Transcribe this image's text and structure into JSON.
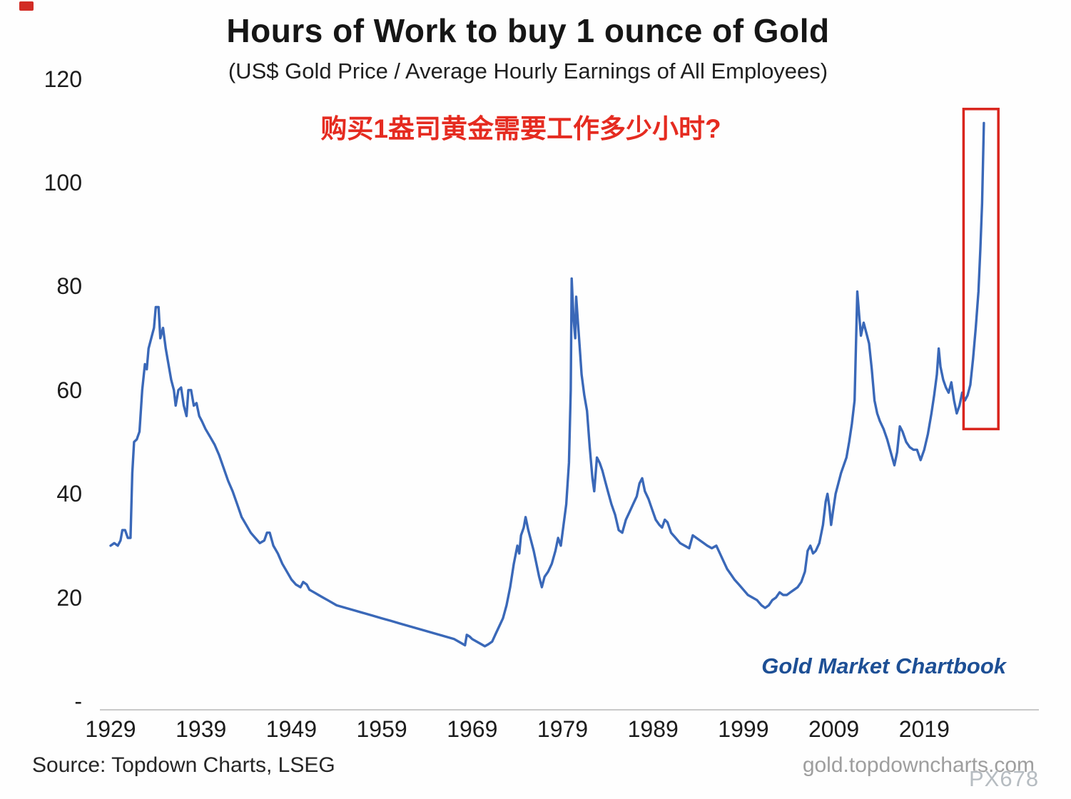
{
  "chart_data": {
    "type": "line",
    "title": "Hours of Work to buy 1 ounce of Gold",
    "subtitle": "(US$ Gold Price / Average Hourly Earnings of All Employees)",
    "annotation_cn": "购买1盎司黄金需要工作多少小时?",
    "brand_label": "Gold Market Chartbook",
    "xlabel": "",
    "ylabel": "",
    "x_range": [
      1929,
      2027.5
    ],
    "y_range": [
      0,
      124
    ],
    "grid": false,
    "legend": "none",
    "line_color": "#3a68b8",
    "highlight_color": "#d9251d",
    "y_ticks": [
      {
        "value": 120,
        "label": "120"
      },
      {
        "value": 100,
        "label": "100"
      },
      {
        "value": 80,
        "label": "80"
      },
      {
        "value": 60,
        "label": "60"
      },
      {
        "value": 40,
        "label": "40"
      },
      {
        "value": 20,
        "label": "20"
      },
      {
        "value": 0,
        "label": "-"
      }
    ],
    "x_ticks": [
      {
        "value": 1929,
        "label": "1929"
      },
      {
        "value": 1939,
        "label": "1939"
      },
      {
        "value": 1949,
        "label": "1949"
      },
      {
        "value": 1959,
        "label": "1959"
      },
      {
        "value": 1969,
        "label": "1969"
      },
      {
        "value": 1979,
        "label": "1979"
      },
      {
        "value": 1989,
        "label": "1989"
      },
      {
        "value": 1999,
        "label": "1999"
      },
      {
        "value": 2009,
        "label": "2009"
      },
      {
        "value": 2019,
        "label": "2019"
      }
    ],
    "highlight_box": {
      "x0": 2023.35,
      "x1": 2027.2,
      "y0": 52.5,
      "y1": 114.2
    },
    "series": [
      {
        "name": "Hours of work to buy 1 oz of gold",
        "points": [
          [
            1929.0,
            30
          ],
          [
            1929.4,
            30.5
          ],
          [
            1929.8,
            30
          ],
          [
            1930.1,
            31
          ],
          [
            1930.3,
            33
          ],
          [
            1930.6,
            33
          ],
          [
            1930.9,
            31.5
          ],
          [
            1931.2,
            31.5
          ],
          [
            1931.4,
            44
          ],
          [
            1931.6,
            50
          ],
          [
            1931.9,
            50.5
          ],
          [
            1932.2,
            52
          ],
          [
            1932.5,
            60
          ],
          [
            1932.8,
            65
          ],
          [
            1933.0,
            64
          ],
          [
            1933.2,
            68
          ],
          [
            1933.5,
            70
          ],
          [
            1933.8,
            72
          ],
          [
            1934.0,
            76
          ],
          [
            1934.3,
            76
          ],
          [
            1934.5,
            70
          ],
          [
            1934.8,
            72
          ],
          [
            1935.1,
            68
          ],
          [
            1935.4,
            65
          ],
          [
            1935.7,
            62
          ],
          [
            1936.0,
            60
          ],
          [
            1936.2,
            57
          ],
          [
            1936.5,
            60
          ],
          [
            1936.8,
            60.5
          ],
          [
            1937.1,
            57
          ],
          [
            1937.4,
            55
          ],
          [
            1937.6,
            60
          ],
          [
            1937.9,
            60
          ],
          [
            1938.2,
            57
          ],
          [
            1938.5,
            57.5
          ],
          [
            1938.8,
            55
          ],
          [
            1939.1,
            54
          ],
          [
            1939.5,
            52.5
          ],
          [
            1940.0,
            51
          ],
          [
            1940.5,
            49.5
          ],
          [
            1941.0,
            47.5
          ],
          [
            1941.5,
            45
          ],
          [
            1942.0,
            42.5
          ],
          [
            1942.5,
            40.5
          ],
          [
            1943.0,
            38
          ],
          [
            1943.5,
            35.5
          ],
          [
            1944.0,
            34
          ],
          [
            1944.5,
            32.5
          ],
          [
            1945.0,
            31.5
          ],
          [
            1945.5,
            30.5
          ],
          [
            1946.0,
            31
          ],
          [
            1946.3,
            32.5
          ],
          [
            1946.6,
            32.5
          ],
          [
            1947.0,
            30
          ],
          [
            1947.5,
            28.5
          ],
          [
            1948.0,
            26.5
          ],
          [
            1948.5,
            25
          ],
          [
            1949.0,
            23.5
          ],
          [
            1949.5,
            22.5
          ],
          [
            1950.0,
            22
          ],
          [
            1950.3,
            23
          ],
          [
            1950.7,
            22.5
          ],
          [
            1951.0,
            21.5
          ],
          [
            1951.5,
            21
          ],
          [
            1952.0,
            20.5
          ],
          [
            1952.5,
            20
          ],
          [
            1953.0,
            19.5
          ],
          [
            1954.0,
            18.5
          ],
          [
            1955.0,
            18
          ],
          [
            1956.0,
            17.5
          ],
          [
            1957.0,
            17
          ],
          [
            1958.0,
            16.5
          ],
          [
            1959.0,
            16
          ],
          [
            1960.0,
            15.5
          ],
          [
            1961.0,
            15
          ],
          [
            1962.0,
            14.5
          ],
          [
            1963.0,
            14
          ],
          [
            1964.0,
            13.5
          ],
          [
            1965.0,
            13
          ],
          [
            1966.0,
            12.5
          ],
          [
            1967.0,
            12
          ],
          [
            1967.5,
            11.5
          ],
          [
            1968.0,
            11
          ],
          [
            1968.2,
            10.8
          ],
          [
            1968.4,
            12.8
          ],
          [
            1968.7,
            12.5
          ],
          [
            1969.0,
            12
          ],
          [
            1969.5,
            11.5
          ],
          [
            1970.0,
            11
          ],
          [
            1970.4,
            10.6
          ],
          [
            1970.8,
            11
          ],
          [
            1971.2,
            11.5
          ],
          [
            1971.6,
            13
          ],
          [
            1972.0,
            14.5
          ],
          [
            1972.4,
            16
          ],
          [
            1972.8,
            18.5
          ],
          [
            1973.2,
            22
          ],
          [
            1973.6,
            26.5
          ],
          [
            1974.0,
            30
          ],
          [
            1974.2,
            28.5
          ],
          [
            1974.4,
            32
          ],
          [
            1974.7,
            33.5
          ],
          [
            1974.9,
            35.5
          ],
          [
            1975.2,
            33
          ],
          [
            1975.5,
            31
          ],
          [
            1975.8,
            29
          ],
          [
            1976.1,
            26.5
          ],
          [
            1976.4,
            24
          ],
          [
            1976.7,
            22
          ],
          [
            1977.0,
            24
          ],
          [
            1977.4,
            25
          ],
          [
            1977.8,
            26.5
          ],
          [
            1978.2,
            29
          ],
          [
            1978.5,
            31.5
          ],
          [
            1978.8,
            30
          ],
          [
            1979.1,
            34
          ],
          [
            1979.4,
            38
          ],
          [
            1979.7,
            46
          ],
          [
            1979.9,
            60
          ],
          [
            1980.0,
            81.5
          ],
          [
            1980.2,
            74
          ],
          [
            1980.4,
            70
          ],
          [
            1980.5,
            78
          ],
          [
            1980.7,
            73
          ],
          [
            1980.9,
            68
          ],
          [
            1981.1,
            63
          ],
          [
            1981.4,
            59
          ],
          [
            1981.7,
            56
          ],
          [
            1982.0,
            49
          ],
          [
            1982.3,
            43
          ],
          [
            1982.5,
            40.5
          ],
          [
            1982.8,
            47
          ],
          [
            1983.1,
            46
          ],
          [
            1983.4,
            44.5
          ],
          [
            1983.7,
            42.5
          ],
          [
            1984.0,
            40.5
          ],
          [
            1984.4,
            38
          ],
          [
            1984.8,
            36
          ],
          [
            1985.2,
            33
          ],
          [
            1985.6,
            32.5
          ],
          [
            1986.0,
            35
          ],
          [
            1986.4,
            36.5
          ],
          [
            1986.8,
            38
          ],
          [
            1987.2,
            39.5
          ],
          [
            1987.5,
            42
          ],
          [
            1987.8,
            43
          ],
          [
            1988.1,
            40.5
          ],
          [
            1988.5,
            39
          ],
          [
            1988.9,
            37
          ],
          [
            1989.3,
            35
          ],
          [
            1989.7,
            34
          ],
          [
            1990.0,
            33.5
          ],
          [
            1990.3,
            35
          ],
          [
            1990.6,
            34.5
          ],
          [
            1991.0,
            32.5
          ],
          [
            1991.5,
            31.5
          ],
          [
            1992.0,
            30.5
          ],
          [
            1992.5,
            30
          ],
          [
            1993.0,
            29.5
          ],
          [
            1993.4,
            32
          ],
          [
            1993.8,
            31.5
          ],
          [
            1994.2,
            31
          ],
          [
            1994.6,
            30.5
          ],
          [
            1995.0,
            30
          ],
          [
            1995.5,
            29.5
          ],
          [
            1996.0,
            30
          ],
          [
            1996.4,
            28.5
          ],
          [
            1996.8,
            27
          ],
          [
            1997.2,
            25.5
          ],
          [
            1997.6,
            24.5
          ],
          [
            1998.0,
            23.5
          ],
          [
            1998.5,
            22.5
          ],
          [
            1999.0,
            21.5
          ],
          [
            1999.5,
            20.5
          ],
          [
            2000.0,
            20
          ],
          [
            2000.5,
            19.5
          ],
          [
            2001.0,
            18.5
          ],
          [
            2001.4,
            18
          ],
          [
            2001.8,
            18.5
          ],
          [
            2002.2,
            19.5
          ],
          [
            2002.6,
            20
          ],
          [
            2003.0,
            21
          ],
          [
            2003.4,
            20.5
          ],
          [
            2003.8,
            20.5
          ],
          [
            2004.2,
            21
          ],
          [
            2004.6,
            21.5
          ],
          [
            2005.0,
            22
          ],
          [
            2005.4,
            23
          ],
          [
            2005.8,
            25
          ],
          [
            2006.1,
            29
          ],
          [
            2006.4,
            30
          ],
          [
            2006.7,
            28.5
          ],
          [
            2007.0,
            29
          ],
          [
            2007.4,
            30.5
          ],
          [
            2007.8,
            34
          ],
          [
            2008.1,
            38.5
          ],
          [
            2008.3,
            40
          ],
          [
            2008.5,
            37.5
          ],
          [
            2008.7,
            34
          ],
          [
            2008.9,
            36.5
          ],
          [
            2009.2,
            40
          ],
          [
            2009.5,
            42
          ],
          [
            2009.8,
            44
          ],
          [
            2010.1,
            45.5
          ],
          [
            2010.4,
            47
          ],
          [
            2010.7,
            50
          ],
          [
            2011.0,
            53.5
          ],
          [
            2011.3,
            58
          ],
          [
            2011.6,
            79
          ],
          [
            2011.8,
            74.5
          ],
          [
            2012.0,
            70.5
          ],
          [
            2012.3,
            73
          ],
          [
            2012.6,
            71
          ],
          [
            2012.9,
            69
          ],
          [
            2013.2,
            64
          ],
          [
            2013.5,
            58
          ],
          [
            2013.8,
            55.5
          ],
          [
            2014.1,
            54
          ],
          [
            2014.5,
            52.5
          ],
          [
            2014.9,
            50.5
          ],
          [
            2015.3,
            48
          ],
          [
            2015.7,
            45.5
          ],
          [
            2016.0,
            48
          ],
          [
            2016.3,
            53
          ],
          [
            2016.6,
            52
          ],
          [
            2017.0,
            50
          ],
          [
            2017.4,
            49
          ],
          [
            2017.8,
            48.5
          ],
          [
            2018.2,
            48.5
          ],
          [
            2018.6,
            46.5
          ],
          [
            2019.0,
            48.5
          ],
          [
            2019.4,
            51.5
          ],
          [
            2019.8,
            55.5
          ],
          [
            2020.1,
            59
          ],
          [
            2020.4,
            63
          ],
          [
            2020.6,
            68
          ],
          [
            2020.8,
            64.5
          ],
          [
            2021.1,
            62
          ],
          [
            2021.4,
            60.5
          ],
          [
            2021.7,
            59.5
          ],
          [
            2022.0,
            61.5
          ],
          [
            2022.3,
            58
          ],
          [
            2022.6,
            55.5
          ],
          [
            2022.9,
            57
          ],
          [
            2023.2,
            59.5
          ],
          [
            2023.5,
            58
          ],
          [
            2023.8,
            59
          ],
          [
            2024.1,
            61
          ],
          [
            2024.4,
            66
          ],
          [
            2024.7,
            72
          ],
          [
            2025.0,
            79
          ],
          [
            2025.2,
            87
          ],
          [
            2025.4,
            96
          ],
          [
            2025.6,
            111.5
          ]
        ]
      }
    ]
  },
  "footer": {
    "source": "Source: Topdown Charts, LSEG",
    "website": "gold.topdowncharts.com",
    "watermark": "PX678"
  }
}
